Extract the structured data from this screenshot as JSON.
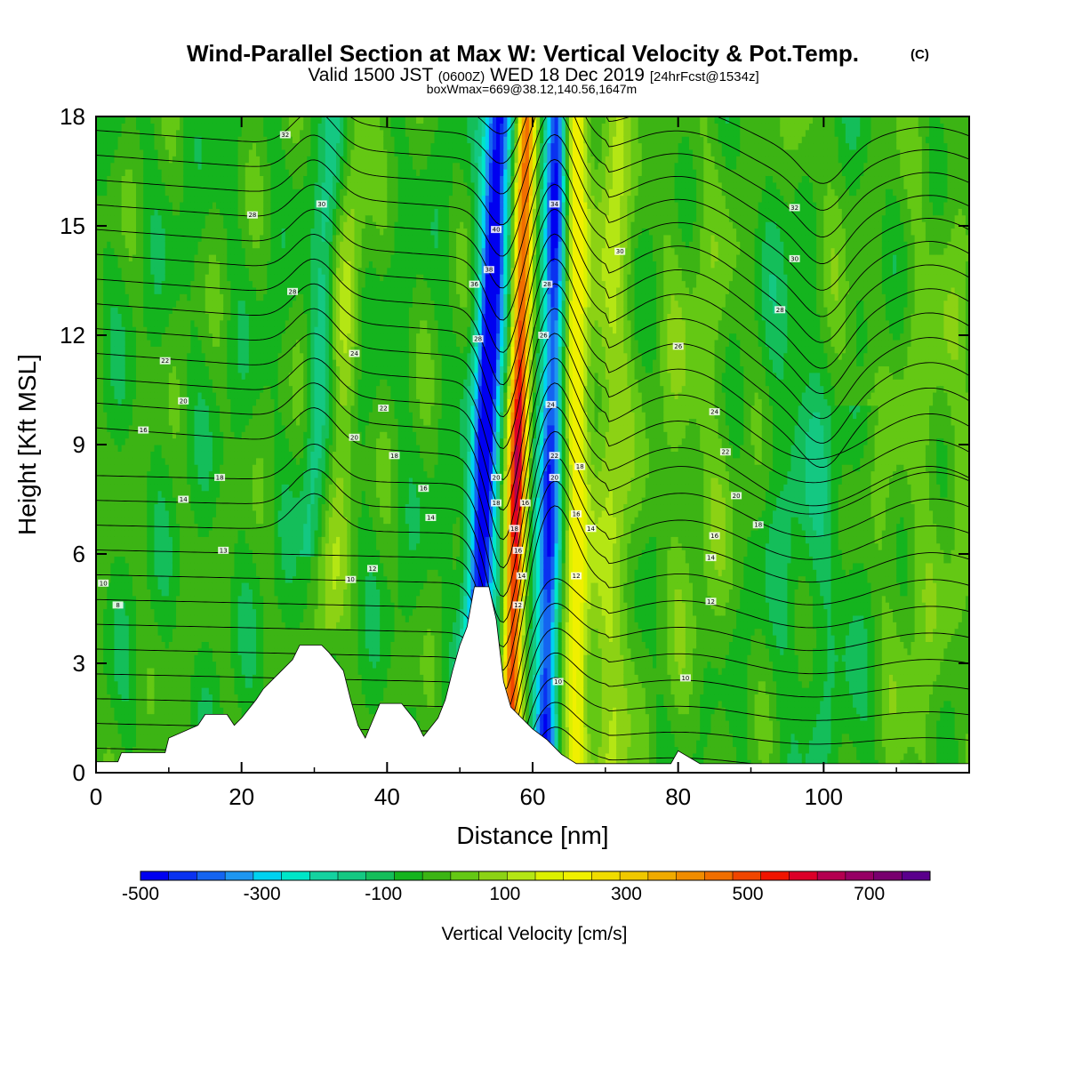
{
  "chart_data": {
    "type": "heatmap",
    "title": "Wind-Parallel Section at Max W: Vertical Velocity & Pot.Temp.",
    "title_mark": "(C)",
    "subtitle_main": "Valid 1500 JST",
    "subtitle_z": "(0600Z)",
    "subtitle_date": "WED 18 Dec 2019",
    "subtitle_fcst": "[24hrFcst@1534z]",
    "subtitle2": "boxWmax=669@38.12,140.56,1647m",
    "xlabel": "Distance [nm]",
    "ylabel": "Height [Kft MSL]",
    "xlim": [
      0,
      120
    ],
    "ylim": [
      0,
      18
    ],
    "xticks": [
      "0",
      "20",
      "40",
      "60",
      "80",
      "100"
    ],
    "yticks": [
      "0",
      "3",
      "6",
      "9",
      "12",
      "15",
      "18"
    ],
    "colorbar": {
      "label": "Vertical Velocity [cm/s]",
      "tick_labels": [
        "-500",
        "-300",
        "-100",
        "100",
        "300",
        "500",
        "700"
      ],
      "tick_values": [
        -500,
        -300,
        -100,
        100,
        300,
        500,
        700
      ],
      "min": -500,
      "max": 800,
      "step": 50,
      "colors": [
        "#0000f0",
        "#0a32f0",
        "#1464f0",
        "#1e96f0",
        "#00d2f0",
        "#00e6c8",
        "#14d2a0",
        "#14c882",
        "#14be5a",
        "#14b41e",
        "#3cb414",
        "#64c814",
        "#8cd214",
        "#b4e614",
        "#dcf000",
        "#f0f000",
        "#f0dc00",
        "#f0c800",
        "#f0aa00",
        "#f08c00",
        "#f06e00",
        "#f04600",
        "#f01400",
        "#dc0028",
        "#b40050",
        "#960064",
        "#78006e",
        "#5a008c"
      ]
    },
    "vertical_velocity_peaks": [
      {
        "x": 53.5,
        "value": -520
      },
      {
        "x": 58.0,
        "value": 669
      },
      {
        "x": 62.5,
        "value": -450
      },
      {
        "x": 66.0,
        "value": 300
      },
      {
        "x": 59.5,
        "value": 350
      },
      {
        "x": 71.0,
        "value": 170
      }
    ],
    "terrain_kft": [
      [
        0,
        0.3
      ],
      [
        3,
        0.3
      ],
      [
        3.5,
        0.55
      ],
      [
        9.5,
        0.55
      ],
      [
        10,
        0.95
      ],
      [
        14,
        1.3
      ],
      [
        15,
        1.6
      ],
      [
        18,
        1.6
      ],
      [
        19,
        1.3
      ],
      [
        20,
        1.5
      ],
      [
        22,
        2.0
      ],
      [
        23,
        2.3
      ],
      [
        25,
        2.7
      ],
      [
        27,
        3.1
      ],
      [
        28,
        3.5
      ],
      [
        31,
        3.5
      ],
      [
        32,
        3.3
      ],
      [
        34,
        2.8
      ],
      [
        35,
        2.0
      ],
      [
        36,
        1.3
      ],
      [
        37,
        0.95
      ],
      [
        39,
        1.9
      ],
      [
        42,
        1.9
      ],
      [
        44,
        1.4
      ],
      [
        45,
        1.0
      ],
      [
        47,
        1.5
      ],
      [
        48,
        2.0
      ],
      [
        49,
        2.8
      ],
      [
        50,
        3.5
      ],
      [
        51,
        4.0
      ],
      [
        52,
        5.1
      ],
      [
        54,
        5.1
      ],
      [
        55,
        4.2
      ],
      [
        56,
        2.5
      ],
      [
        57,
        1.8
      ],
      [
        58,
        1.6
      ],
      [
        60,
        1.2
      ],
      [
        62,
        0.9
      ],
      [
        64,
        0.5
      ],
      [
        66,
        0.25
      ],
      [
        79,
        0.25
      ],
      [
        80,
        0.6
      ],
      [
        83,
        0.25
      ],
      [
        120,
        0.25
      ]
    ],
    "contour_labels": [
      {
        "x": 26,
        "y": 17.5,
        "text": "32"
      },
      {
        "x": 31,
        "y": 15.6,
        "text": "30"
      },
      {
        "x": 21.5,
        "y": 15.3,
        "text": "28"
      },
      {
        "x": 27,
        "y": 13.2,
        "text": "28"
      },
      {
        "x": 9.5,
        "y": 11.3,
        "text": "22"
      },
      {
        "x": 35.5,
        "y": 11.5,
        "text": "24"
      },
      {
        "x": 12,
        "y": 10.2,
        "text": "20"
      },
      {
        "x": 39.5,
        "y": 10.0,
        "text": "22"
      },
      {
        "x": 6.5,
        "y": 9.4,
        "text": "16"
      },
      {
        "x": 35.5,
        "y": 9.2,
        "text": "20"
      },
      {
        "x": 41,
        "y": 8.7,
        "text": "18"
      },
      {
        "x": 17,
        "y": 8.1,
        "text": "18"
      },
      {
        "x": 45,
        "y": 7.8,
        "text": "16"
      },
      {
        "x": 12,
        "y": 7.5,
        "text": "14"
      },
      {
        "x": 46,
        "y": 7.0,
        "text": "14"
      },
      {
        "x": 17.5,
        "y": 6.1,
        "text": "13"
      },
      {
        "x": 38,
        "y": 5.6,
        "text": "12"
      },
      {
        "x": 35,
        "y": 5.3,
        "text": "10"
      },
      {
        "x": 1,
        "y": 5.2,
        "text": "10"
      },
      {
        "x": 3,
        "y": 4.6,
        "text": "8"
      },
      {
        "x": 55,
        "y": 14.9,
        "text": "40"
      },
      {
        "x": 54,
        "y": 13.8,
        "text": "38"
      },
      {
        "x": 52,
        "y": 13.4,
        "text": "36"
      },
      {
        "x": 52.5,
        "y": 11.9,
        "text": "28"
      },
      {
        "x": 63,
        "y": 15.6,
        "text": "34"
      },
      {
        "x": 62,
        "y": 13.4,
        "text": "28"
      },
      {
        "x": 61.5,
        "y": 12.0,
        "text": "26"
      },
      {
        "x": 62.5,
        "y": 10.1,
        "text": "24"
      },
      {
        "x": 63,
        "y": 8.7,
        "text": "22"
      },
      {
        "x": 55,
        "y": 8.1,
        "text": "20"
      },
      {
        "x": 63,
        "y": 8.1,
        "text": "20"
      },
      {
        "x": 66.5,
        "y": 8.4,
        "text": "18"
      },
      {
        "x": 55,
        "y": 7.4,
        "text": "18"
      },
      {
        "x": 59,
        "y": 7.4,
        "text": "16"
      },
      {
        "x": 66,
        "y": 7.1,
        "text": "16"
      },
      {
        "x": 57.5,
        "y": 6.7,
        "text": "18"
      },
      {
        "x": 68,
        "y": 6.7,
        "text": "14"
      },
      {
        "x": 58,
        "y": 6.1,
        "text": "16"
      },
      {
        "x": 58.5,
        "y": 5.4,
        "text": "14"
      },
      {
        "x": 66,
        "y": 5.4,
        "text": "12"
      },
      {
        "x": 58,
        "y": 4.6,
        "text": "12"
      },
      {
        "x": 63.5,
        "y": 2.5,
        "text": "10"
      },
      {
        "x": 72,
        "y": 14.3,
        "text": "30"
      },
      {
        "x": 96,
        "y": 15.5,
        "text": "32"
      },
      {
        "x": 96,
        "y": 14.1,
        "text": "30"
      },
      {
        "x": 94,
        "y": 12.7,
        "text": "28"
      },
      {
        "x": 80,
        "y": 11.7,
        "text": "26"
      },
      {
        "x": 85,
        "y": 9.9,
        "text": "24"
      },
      {
        "x": 86.5,
        "y": 8.8,
        "text": "22"
      },
      {
        "x": 88,
        "y": 7.6,
        "text": "20"
      },
      {
        "x": 91,
        "y": 6.8,
        "text": "18"
      },
      {
        "x": 85,
        "y": 6.5,
        "text": "16"
      },
      {
        "x": 84.5,
        "y": 5.9,
        "text": "14"
      },
      {
        "x": 84.5,
        "y": 4.7,
        "text": "12"
      },
      {
        "x": 81,
        "y": 2.6,
        "text": "10"
      }
    ]
  }
}
